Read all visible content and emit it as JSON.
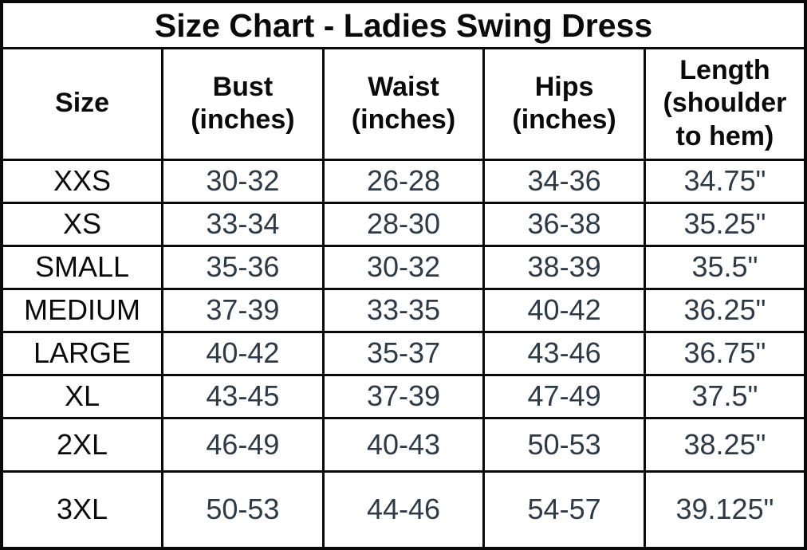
{
  "colors": {
    "background": "#ffffff",
    "border": "#0a0a0a",
    "heading_text": "#0a0a0a",
    "value_text": "#2e3a46"
  },
  "chart_data": {
    "type": "table",
    "title": "Size Chart - Ladies Swing Dress",
    "headers": [
      {
        "label": "Size",
        "sub": ""
      },
      {
        "label": "Bust",
        "sub": "(inches)"
      },
      {
        "label": "Waist",
        "sub": "(inches)"
      },
      {
        "label": "Hips",
        "sub": "(inches)"
      },
      {
        "label": "Length",
        "sub": "(shoulder to hem)"
      }
    ],
    "rows": [
      {
        "size": "XXS",
        "bust": "30-32",
        "waist": "26-28",
        "hips": "34-36",
        "length": "34.75\""
      },
      {
        "size": "XS",
        "bust": "33-34",
        "waist": "28-30",
        "hips": "36-38",
        "length": "35.25\""
      },
      {
        "size": "SMALL",
        "bust": "35-36",
        "waist": "30-32",
        "hips": "38-39",
        "length": "35.5\""
      },
      {
        "size": "MEDIUM",
        "bust": "37-39",
        "waist": "33-35",
        "hips": "40-42",
        "length": "36.25\""
      },
      {
        "size": "LARGE",
        "bust": "40-42",
        "waist": "35-37",
        "hips": "43-46",
        "length": "36.75\""
      },
      {
        "size": "XL",
        "bust": "43-45",
        "waist": "37-39",
        "hips": "47-49",
        "length": "37.5\""
      },
      {
        "size": "2XL",
        "bust": "46-49",
        "waist": "40-43",
        "hips": "50-53",
        "length": "38.25\""
      },
      {
        "size": "3XL",
        "bust": "50-53",
        "waist": "44-46",
        "hips": "54-57",
        "length": "39.125\""
      }
    ]
  }
}
